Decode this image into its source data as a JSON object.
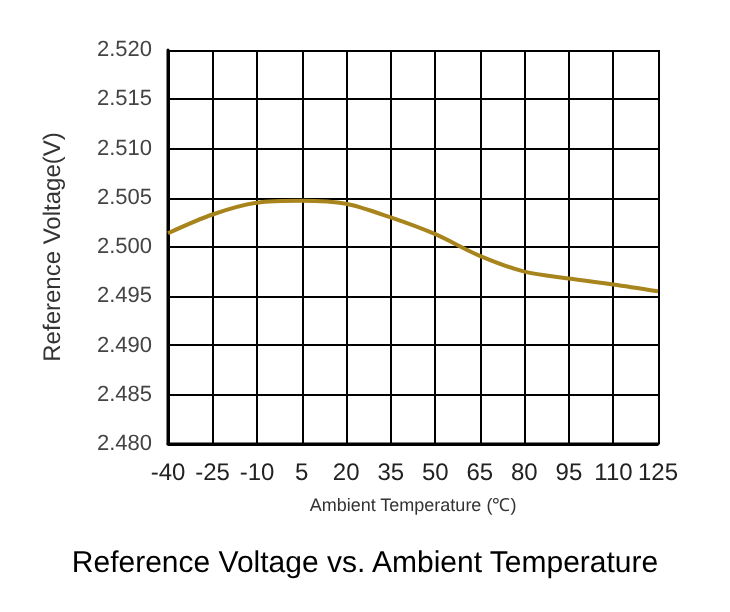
{
  "chart_data": {
    "type": "line",
    "title": "Reference Voltage vs. Ambient Temperature",
    "xlabel": "Ambient Temperature (℃)",
    "ylabel": "Reference Voltage(V)",
    "x": [
      -40,
      -25,
      -10,
      5,
      20,
      35,
      50,
      65,
      80,
      95,
      110,
      125
    ],
    "series": [
      {
        "color": "#a8841c",
        "values": [
          2.5014,
          2.5033,
          2.5045,
          2.5047,
          2.5044,
          2.503,
          2.5013,
          2.4991,
          2.4975,
          2.4968,
          2.4962,
          2.4955
        ]
      }
    ],
    "xlim": [
      -40,
      125
    ],
    "xticks": [
      -40,
      -25,
      -10,
      5,
      20,
      35,
      50,
      65,
      80,
      95,
      110,
      125
    ],
    "ylim": [
      2.48,
      2.52
    ],
    "yticks": [
      {
        "value": 2.48,
        "label": "2.480"
      },
      {
        "value": 2.485,
        "label": "2.485"
      },
      {
        "value": 2.49,
        "label": "2.490"
      },
      {
        "value": 2.495,
        "label": "2.495"
      },
      {
        "value": 2.5,
        "label": "2.500"
      },
      {
        "value": 2.505,
        "label": "2.505"
      },
      {
        "value": 2.51,
        "label": "2.510"
      },
      {
        "value": 2.515,
        "label": "2.515"
      },
      {
        "value": 2.52,
        "label": "2.520"
      }
    ],
    "grid": true,
    "marker": "none",
    "line_style": "solid"
  }
}
